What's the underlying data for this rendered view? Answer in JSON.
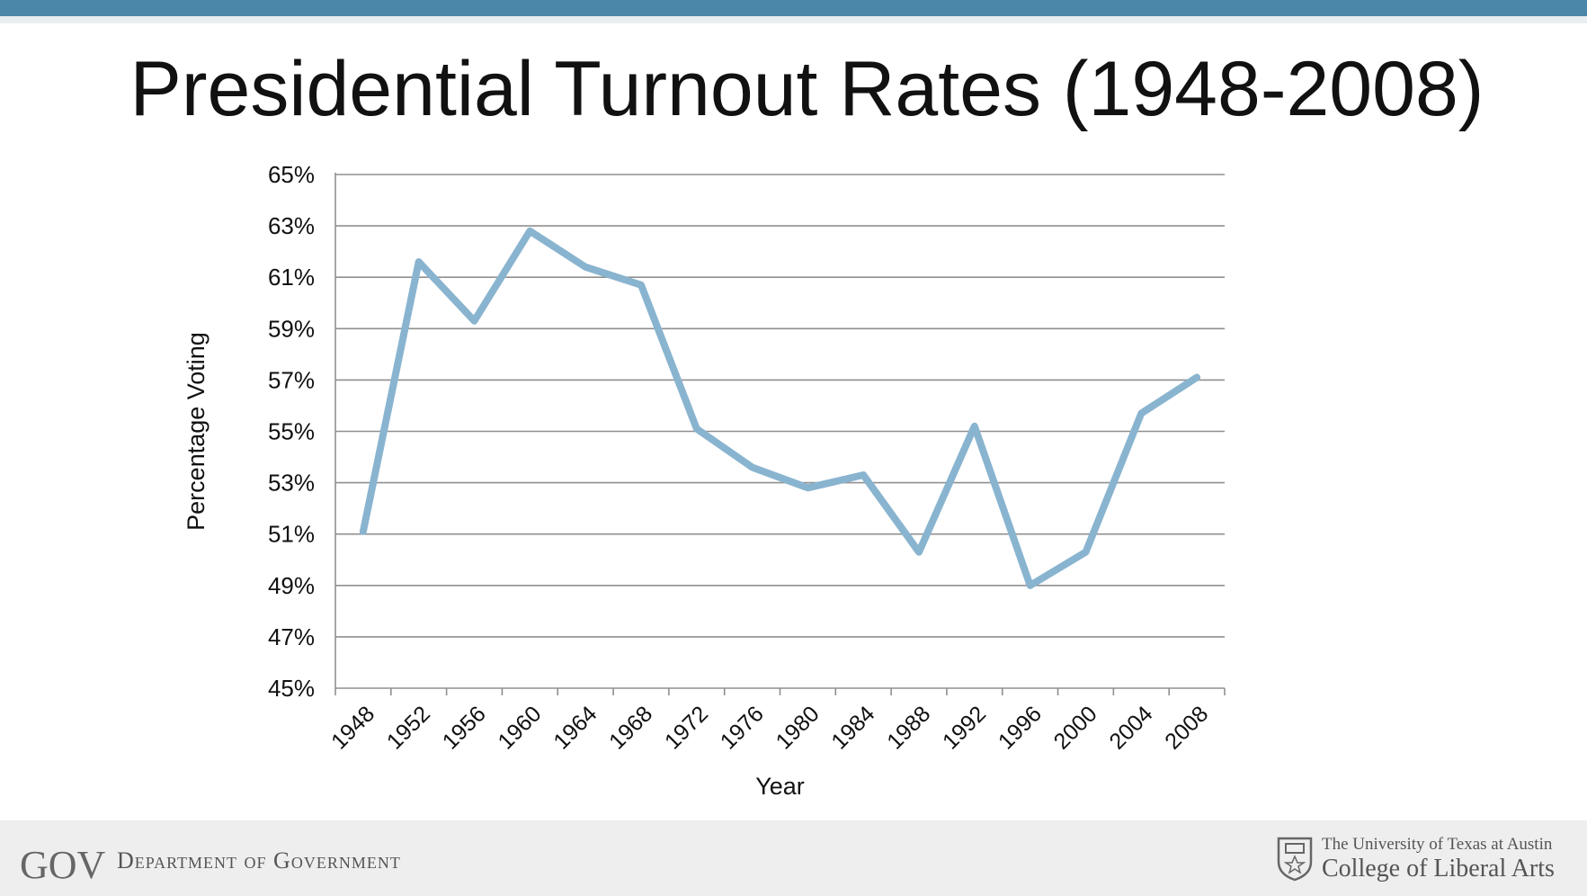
{
  "slide": {
    "title": "Presidential Turnout Rates (1948-2008)"
  },
  "chart_data": {
    "type": "line",
    "title": "",
    "xlabel": "Year",
    "ylabel": "Percentage Voting",
    "categories": [
      "1948",
      "1952",
      "1956",
      "1960",
      "1964",
      "1968",
      "1972",
      "1976",
      "1980",
      "1984",
      "1988",
      "1992",
      "1996",
      "2000",
      "2004",
      "2008"
    ],
    "series": [
      {
        "values": [
          51.1,
          61.6,
          59.3,
          62.8,
          61.4,
          60.7,
          55.1,
          53.6,
          52.8,
          53.3,
          50.3,
          55.2,
          49.0,
          50.3,
          55.7,
          57.1
        ]
      }
    ],
    "ylim": [
      45,
      65
    ],
    "yticks": [
      "45%",
      "47%",
      "49%",
      "51%",
      "53%",
      "55%",
      "57%",
      "59%",
      "61%",
      "63%",
      "65%"
    ],
    "grid": true,
    "line_color": "#89b4d0"
  },
  "footer": {
    "gov_logo_text": "GOV",
    "department": "Department of Government",
    "university": "The University of Texas at Austin",
    "college": "College of Liberal Arts"
  }
}
